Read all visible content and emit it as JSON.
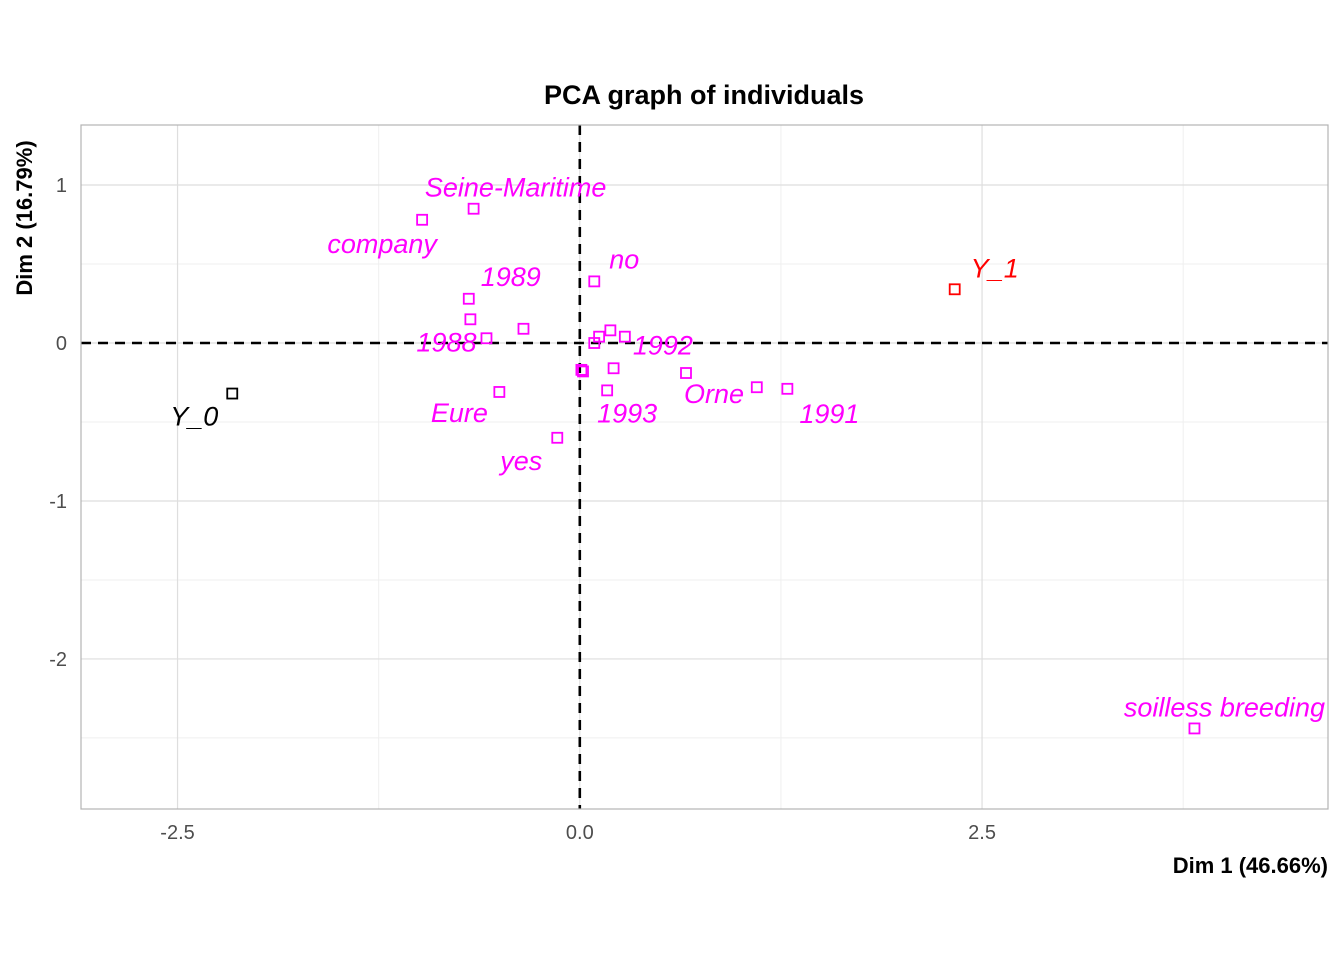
{
  "chart_data": {
    "type": "scatter",
    "title": "PCA graph of individuals",
    "xlabel": "Dim 1 (46.66%)",
    "ylabel": "Dim 2 (16.79%)",
    "xlim": [
      -3.1,
      4.65
    ],
    "ylim": [
      -2.95,
      1.38
    ],
    "x_ticks": [
      -2.5,
      0.0,
      2.5
    ],
    "x_tick_labels": [
      "-2.5",
      "0.0",
      "2.5"
    ],
    "y_ticks": [
      -2,
      -1,
      0,
      1
    ],
    "y_tick_labels": [
      "-2",
      "-1",
      "0",
      "1"
    ],
    "grid": true,
    "reference_lines": [
      0,
      0
    ],
    "colors": {
      "supplementary": "#ff00ff",
      "Y_0": "#000000",
      "Y_1": "#ff0000",
      "reference": "#000000",
      "grid": "#dedede",
      "panel_border": "#b3b3b3"
    },
    "points": [
      {
        "label": "Y_0",
        "x": -2.16,
        "y": -0.32,
        "color": "#000000"
      },
      {
        "label": "Y_1",
        "x": 2.33,
        "y": 0.34,
        "color": "#ff0000"
      },
      {
        "label": "soilless breeding",
        "x": 3.82,
        "y": -2.44,
        "color": "#ff00ff"
      },
      {
        "label": "Seine-Maritime",
        "x": -0.66,
        "y": 0.85,
        "color": "#ff00ff"
      },
      {
        "label": "company",
        "x": -0.98,
        "y": 0.78,
        "color": "#ff00ff"
      },
      {
        "label": "1989",
        "x": -0.69,
        "y": 0.28,
        "color": "#ff00ff"
      },
      {
        "label": "no",
        "x": 0.09,
        "y": 0.39,
        "color": "#ff00ff"
      },
      {
        "label": "1988",
        "x": -0.58,
        "y": 0.03,
        "color": "#ff00ff"
      },
      {
        "label": "1992",
        "x": 0.28,
        "y": 0.04,
        "color": "#ff00ff"
      },
      {
        "label": "Eure",
        "x": -0.5,
        "y": -0.31,
        "color": "#ff00ff"
      },
      {
        "label": "yes",
        "x": -0.14,
        "y": -0.6,
        "color": "#ff00ff"
      },
      {
        "label": "1993",
        "x": 0.17,
        "y": -0.3,
        "color": "#ff00ff"
      },
      {
        "label": "Orne",
        "x": 0.66,
        "y": -0.19,
        "color": "#ff00ff"
      },
      {
        "label": "1991",
        "x": 1.29,
        "y": -0.29,
        "color": "#ff00ff"
      },
      {
        "label": "",
        "x": -0.68,
        "y": 0.15,
        "color": "#ff00ff"
      },
      {
        "label": "",
        "x": -0.35,
        "y": 0.09,
        "color": "#ff00ff"
      },
      {
        "label": "",
        "x": 0.12,
        "y": 0.04,
        "color": "#ff00ff"
      },
      {
        "label": "",
        "x": 0.19,
        "y": 0.08,
        "color": "#ff00ff"
      },
      {
        "label": "",
        "x": 0.09,
        "y": 0.0,
        "color": "#ff00ff"
      },
      {
        "label": "",
        "x": 0.21,
        "y": -0.16,
        "color": "#ff00ff"
      },
      {
        "label": "",
        "x": 0.01,
        "y": -0.17,
        "color": "#ff00ff"
      },
      {
        "label": "",
        "x": 0.02,
        "y": -0.18,
        "color": "#ff00ff"
      },
      {
        "label": "",
        "x": 1.1,
        "y": -0.28,
        "color": "#ff00ff"
      }
    ]
  }
}
